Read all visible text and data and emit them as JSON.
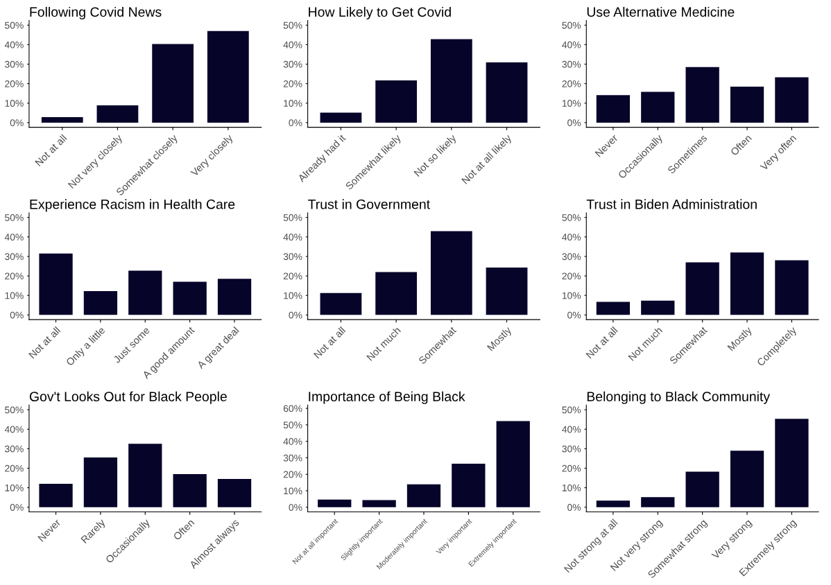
{
  "chart_data": [
    {
      "type": "bar",
      "title": "Following Covid News",
      "categories": [
        "Not at all",
        "Not very closely",
        "Somewhat closely",
        "Very closely"
      ],
      "values": [
        2.8,
        8.9,
        40.3,
        47.0
      ],
      "color": "#07042a",
      "ylim": [
        -2.4,
        52.4
      ],
      "yticks": [
        {
          "value": 0,
          "label": "0%"
        },
        {
          "value": 10,
          "label": "10%"
        },
        {
          "value": 20,
          "label": "20%"
        },
        {
          "value": 30,
          "label": "30%"
        },
        {
          "value": 40,
          "label": "40%"
        },
        {
          "value": 50,
          "label": "50%"
        }
      ],
      "grid": false
    },
    {
      "type": "bar",
      "title": "How Likely to Get Covid",
      "categories": [
        "Already had it",
        "Somewhat likely",
        "Not so likely",
        "Not at all likely"
      ],
      "values": [
        5.1,
        21.7,
        42.8,
        30.9
      ],
      "color": "#07042a",
      "ylim": [
        -2.4,
        52.4
      ],
      "yticks": [
        {
          "value": 0,
          "label": "0%"
        },
        {
          "value": 10,
          "label": "10%"
        },
        {
          "value": 20,
          "label": "20%"
        },
        {
          "value": 30,
          "label": "30%"
        },
        {
          "value": 40,
          "label": "40%"
        },
        {
          "value": 50,
          "label": "50%"
        }
      ],
      "grid": false
    },
    {
      "type": "bar",
      "title": "Use Alternative Medicine",
      "categories": [
        "Never",
        "Occasionally",
        "Sometimes",
        "Often",
        "Very often"
      ],
      "values": [
        14.1,
        15.8,
        28.5,
        18.5,
        23.3
      ],
      "color": "#07042a",
      "ylim": [
        -2.4,
        52.4
      ],
      "yticks": [
        {
          "value": 0,
          "label": "0%"
        },
        {
          "value": 10,
          "label": "10%"
        },
        {
          "value": 20,
          "label": "20%"
        },
        {
          "value": 30,
          "label": "30%"
        },
        {
          "value": 40,
          "label": "40%"
        },
        {
          "value": 50,
          "label": "50%"
        }
      ],
      "grid": false
    },
    {
      "type": "bar",
      "title": "Experience Racism in Health Care",
      "categories": [
        "Not at all",
        "Only a little",
        "Just some",
        "A good amount",
        "A great deal"
      ],
      "values": [
        31.5,
        12.2,
        22.7,
        17.0,
        18.5
      ],
      "color": "#07042a",
      "ylim": [
        -2.4,
        52.4
      ],
      "yticks": [
        {
          "value": 0,
          "label": "0%"
        },
        {
          "value": 10,
          "label": "10%"
        },
        {
          "value": 20,
          "label": "20%"
        },
        {
          "value": 30,
          "label": "30%"
        },
        {
          "value": 40,
          "label": "40%"
        },
        {
          "value": 50,
          "label": "50%"
        }
      ],
      "grid": false
    },
    {
      "type": "bar",
      "title": "Trust in Government",
      "categories": [
        "Not at all",
        "Not much",
        "Somewhat",
        "Mostly"
      ],
      "values": [
        11.2,
        22.0,
        43.0,
        24.3
      ],
      "color": "#07042a",
      "ylim": [
        -2.4,
        52.4
      ],
      "yticks": [
        {
          "value": 0,
          "label": "0%"
        },
        {
          "value": 10,
          "label": "10%"
        },
        {
          "value": 20,
          "label": "20%"
        },
        {
          "value": 30,
          "label": "30%"
        },
        {
          "value": 40,
          "label": "40%"
        },
        {
          "value": 50,
          "label": "50%"
        }
      ],
      "grid": false
    },
    {
      "type": "bar",
      "title": "Trust in Biden Administration",
      "categories": [
        "Not at all",
        "Not much",
        "Somewhat",
        "Mostly",
        "Completely"
      ],
      "values": [
        6.7,
        7.3,
        27.0,
        32.0,
        28.0
      ],
      "color": "#07042a",
      "ylim": [
        -2.4,
        52.4
      ],
      "yticks": [
        {
          "value": 0,
          "label": "0%"
        },
        {
          "value": 10,
          "label": "10%"
        },
        {
          "value": 20,
          "label": "20%"
        },
        {
          "value": 30,
          "label": "30%"
        },
        {
          "value": 40,
          "label": "40%"
        },
        {
          "value": 50,
          "label": "50%"
        }
      ],
      "grid": false
    },
    {
      "type": "bar",
      "title": "Gov't Looks Out for Black People",
      "categories": [
        "Never",
        "Rarely",
        "Occasionally",
        "Often",
        "Almost always"
      ],
      "values": [
        12.0,
        25.5,
        32.5,
        17.0,
        14.5
      ],
      "color": "#07042a",
      "ylim": [
        -2.4,
        52.4
      ],
      "yticks": [
        {
          "value": 0,
          "label": "0%"
        },
        {
          "value": 10,
          "label": "10%"
        },
        {
          "value": 20,
          "label": "20%"
        },
        {
          "value": 30,
          "label": "30%"
        },
        {
          "value": 40,
          "label": "40%"
        },
        {
          "value": 50,
          "label": "50%"
        }
      ],
      "grid": false
    },
    {
      "type": "bar",
      "title": "Importance of Being Black",
      "categories": [
        "Not at all important",
        "Slightly important",
        "Moderately important",
        "Very important",
        "Extremely important"
      ],
      "values": [
        4.7,
        4.3,
        13.9,
        26.4,
        52.3
      ],
      "color": "#07042a",
      "ylim": [
        -2.8,
        62.0
      ],
      "yticks": [
        {
          "value": 0,
          "label": "0%"
        },
        {
          "value": 10,
          "label": "10%"
        },
        {
          "value": 20,
          "label": "20%"
        },
        {
          "value": 30,
          "label": "30%"
        },
        {
          "value": 40,
          "label": "40%"
        },
        {
          "value": 50,
          "label": "50%"
        },
        {
          "value": 60,
          "label": "60%"
        }
      ],
      "grid": false
    },
    {
      "type": "bar",
      "title": "Belonging to Black Community",
      "categories": [
        "Not strong at all",
        "Not very strong",
        "Somewhat strong",
        "Very strong",
        "Extremely strong"
      ],
      "values": [
        3.4,
        5.2,
        18.2,
        29.0,
        45.3
      ],
      "color": "#07042a",
      "ylim": [
        -2.4,
        52.4
      ],
      "yticks": [
        {
          "value": 0,
          "label": "0%"
        },
        {
          "value": 10,
          "label": "10%"
        },
        {
          "value": 20,
          "label": "20%"
        },
        {
          "value": 30,
          "label": "30%"
        },
        {
          "value": 40,
          "label": "40%"
        },
        {
          "value": 50,
          "label": "50%"
        }
      ],
      "grid": false
    }
  ]
}
